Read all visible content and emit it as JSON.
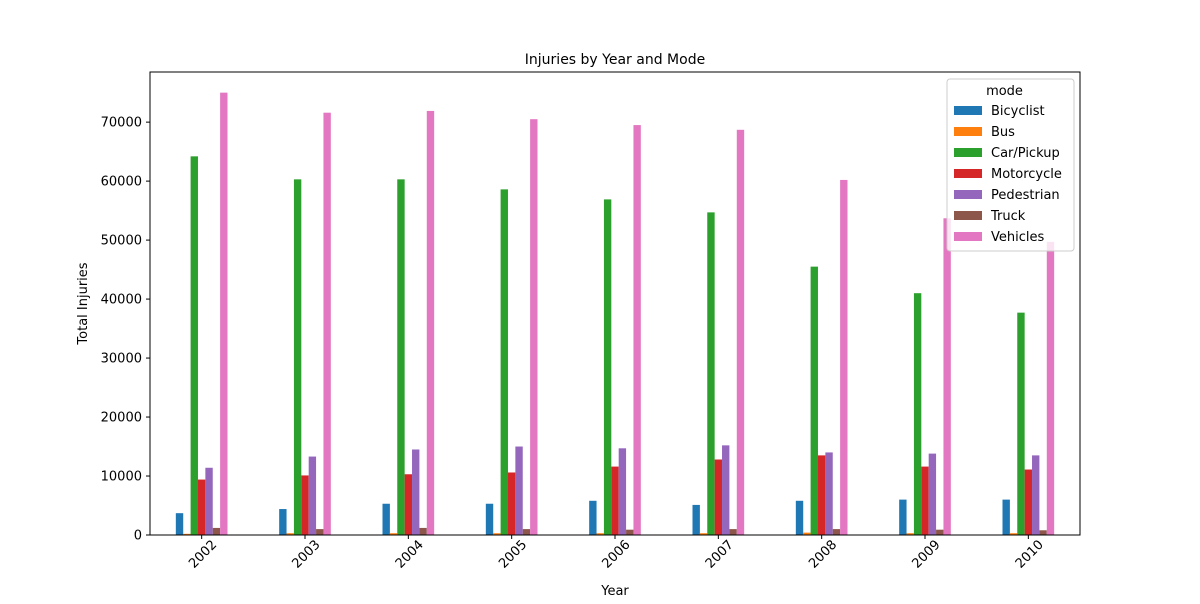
{
  "chart_data": {
    "type": "bar",
    "title": "Injuries by Year and Mode",
    "xlabel": "Year",
    "ylabel": "Total Injuries",
    "categories": [
      "2002",
      "2003",
      "2004",
      "2005",
      "2006",
      "2007",
      "2008",
      "2009",
      "2010"
    ],
    "ylim": [
      0,
      78500
    ],
    "yticks": [
      0,
      10000,
      20000,
      30000,
      40000,
      50000,
      60000,
      70000
    ],
    "grid": false,
    "legend": {
      "title": "mode",
      "placement": "top-right"
    },
    "series": [
      {
        "name": "Bicyclist",
        "color": "#1f77b4",
        "values": [
          3700,
          4400,
          5300,
          5300,
          5800,
          5100,
          5800,
          6000,
          6000
        ]
      },
      {
        "name": "Bus",
        "color": "#ff7f0e",
        "values": [
          200,
          300,
          300,
          300,
          300,
          300,
          400,
          300,
          300
        ]
      },
      {
        "name": "Car/Pickup",
        "color": "#2ca02c",
        "values": [
          64200,
          60300,
          60300,
          58600,
          56900,
          54700,
          45500,
          41000,
          37700
        ]
      },
      {
        "name": "Motorcycle",
        "color": "#d62728",
        "values": [
          9400,
          10100,
          10300,
          10600,
          11600,
          12800,
          13500,
          11600,
          11100
        ]
      },
      {
        "name": "Pedestrian",
        "color": "#9467bd",
        "values": [
          11400,
          13300,
          14500,
          15000,
          14700,
          15200,
          14000,
          13800,
          13500
        ]
      },
      {
        "name": "Truck",
        "color": "#8c564b",
        "values": [
          1200,
          1000,
          1200,
          1000,
          900,
          1000,
          1000,
          900,
          800
        ]
      },
      {
        "name": "Vehicles",
        "color": "#e377c2",
        "values": [
          75000,
          71600,
          71900,
          70500,
          69500,
          68700,
          60200,
          53700,
          49700
        ]
      }
    ]
  }
}
